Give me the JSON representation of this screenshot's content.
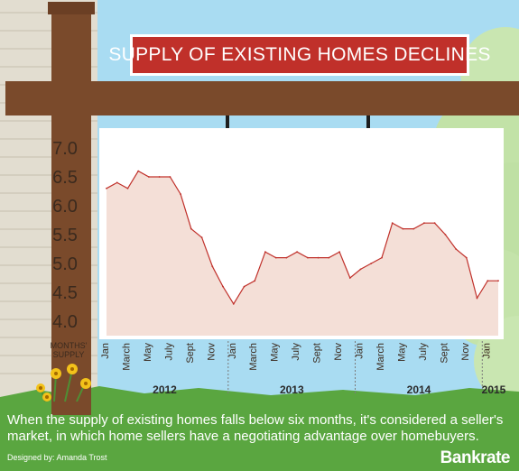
{
  "title": "SUPPLY OF EXISTING HOMES DECLINES",
  "caption": "When the supply of existing homes falls below six months, it's considered a seller's market, in which home sellers have a negotiating advantage over homebuyers.",
  "credit": "Designed by: Amanda Trost",
  "brand": "Bankrate",
  "colors": {
    "sky": "#a9dcf2",
    "post": "#7a4a2b",
    "sign_title": "#c0302a",
    "area_fill": "#f4dfd7",
    "line": "#c0302a",
    "grass": "#5aa640",
    "text_dark": "#3b2a1e"
  },
  "chart_data": {
    "type": "area",
    "title": "SUPPLY OF EXISTING HOMES DECLINES",
    "ylabel": "MONTHS' SUPPLY",
    "ylim": [
      4.0,
      7.0
    ],
    "yticks": [
      "7.0",
      "6.5",
      "6.0",
      "5.5",
      "5.0",
      "4.5",
      "4.0"
    ],
    "xtick_labels": [
      "Jan",
      "March",
      "May",
      "July",
      "Sept",
      "Nov",
      "Jan",
      "March",
      "May",
      "July",
      "Sept",
      "Nov",
      "Jan",
      "March",
      "May",
      "July",
      "Sept",
      "Nov",
      "Jan"
    ],
    "years": [
      "2012",
      "2013",
      "2014",
      "2015"
    ],
    "grid": false,
    "series": [
      {
        "values": [
          6.3,
          6.4,
          6.3,
          6.6,
          6.5,
          6.5,
          6.5,
          6.2,
          5.6,
          5.45,
          4.95,
          4.6,
          4.3,
          4.6,
          4.7,
          5.2,
          5.1,
          5.1,
          5.2,
          5.1,
          5.1,
          5.1,
          5.2,
          4.75,
          4.9,
          5.0,
          5.1,
          5.7,
          5.6,
          5.6,
          5.7,
          5.7,
          5.5,
          5.25,
          5.1,
          4.4,
          4.7,
          4.7
        ]
      }
    ]
  }
}
